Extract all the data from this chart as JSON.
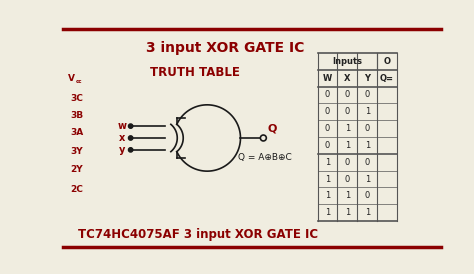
{
  "title": "3 input XOR GATE IC",
  "subtitle": "TRUTH TABLE",
  "bottom_title": "TC74HC4075AF 3 input XOR GATE IC",
  "title_color": "#8B0000",
  "bg_color": "#F0EDE0",
  "border_color": "#8B0000",
  "pin_labels_left": [
    "Vcc",
    "3C",
    "3B",
    "3A",
    "3Y",
    "2Y",
    "2C"
  ],
  "gate_inputs": [
    "w",
    "x",
    "y"
  ],
  "gate_output_label": "Q",
  "equation_label": "Q = A⊕B⊕C",
  "table_header_inputs": "Inputs",
  "table_cols": [
    "W",
    "X",
    "Y",
    "Q="
  ],
  "table_data": [
    [
      0,
      0,
      0
    ],
    [
      0,
      0,
      1
    ],
    [
      0,
      1,
      0
    ],
    [
      0,
      1,
      1
    ],
    [
      1,
      0,
      0
    ],
    [
      1,
      0,
      1
    ],
    [
      1,
      1,
      0
    ],
    [
      1,
      1,
      1
    ]
  ],
  "gate_color": "#1a1a1a",
  "input_label_color": "#8B0000",
  "table_line_color": "#555555",
  "table_text_color": "#222222"
}
